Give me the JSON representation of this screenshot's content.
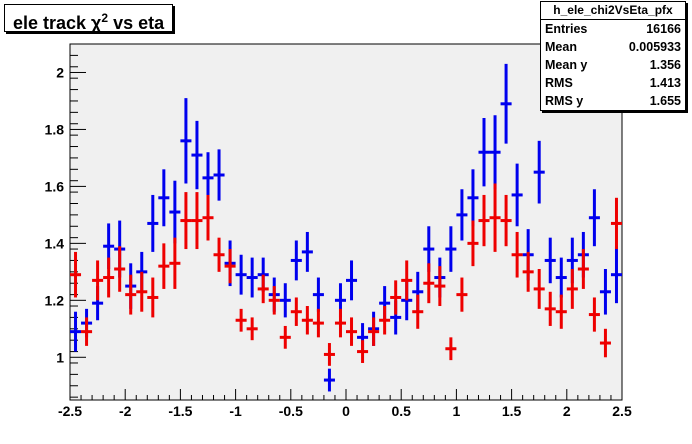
{
  "title_main": "ele track χ",
  "title_sup": "2",
  "title_rest": " vs eta",
  "stats": {
    "name": "h_ele_chi2VsEta_pfx",
    "rows": [
      {
        "label": "Entries",
        "value": "16166"
      },
      {
        "label": "Mean",
        "value": "0.005933"
      },
      {
        "label": "Mean y",
        "value": "1.356"
      },
      {
        "label": "RMS",
        "value": "1.413"
      },
      {
        "label": "RMS y",
        "value": "1.655"
      }
    ]
  },
  "colors": {
    "frame_bg": "#f0f0f0",
    "series_blue": "#0000ee",
    "series_red": "#ee0000"
  },
  "chart_data": {
    "type": "scatter",
    "title": "ele track χ² vs eta",
    "xlabel": "",
    "ylabel": "",
    "xlim": [
      -2.5,
      2.5
    ],
    "ylim": [
      0.85,
      2.1
    ],
    "xticks": [
      "-2.5",
      "-2",
      "-1.5",
      "-1",
      "-0.5",
      "0",
      "0.5",
      "1",
      "1.5",
      "2",
      "2.5"
    ],
    "yticks": [
      "1",
      "1.2",
      "1.4",
      "1.6",
      "1.8",
      "2"
    ],
    "x_bin_halfwidth": 0.05,
    "grid": false,
    "series": [
      {
        "color": "blue",
        "points": [
          {
            "x": -2.45,
            "y": 1.09,
            "err": 0.07
          },
          {
            "x": -2.35,
            "y": 1.12,
            "err": 0.05
          },
          {
            "x": -2.25,
            "y": 1.19,
            "err": 0.06
          },
          {
            "x": -2.15,
            "y": 1.39,
            "err": 0.08
          },
          {
            "x": -2.05,
            "y": 1.38,
            "err": 0.1
          },
          {
            "x": -1.95,
            "y": 1.25,
            "err": 0.08
          },
          {
            "x": -1.85,
            "y": 1.3,
            "err": 0.07
          },
          {
            "x": -1.75,
            "y": 1.47,
            "err": 0.1
          },
          {
            "x": -1.65,
            "y": 1.56,
            "err": 0.1
          },
          {
            "x": -1.55,
            "y": 1.51,
            "err": 0.11
          },
          {
            "x": -1.45,
            "y": 1.76,
            "err": 0.15
          },
          {
            "x": -1.35,
            "y": 1.71,
            "err": 0.12
          },
          {
            "x": -1.25,
            "y": 1.63,
            "err": 0.09
          },
          {
            "x": -1.15,
            "y": 1.64,
            "err": 0.09
          },
          {
            "x": -1.05,
            "y": 1.33,
            "err": 0.08
          },
          {
            "x": -0.95,
            "y": 1.29,
            "err": 0.07
          },
          {
            "x": -0.85,
            "y": 1.28,
            "err": 0.07
          },
          {
            "x": -0.75,
            "y": 1.29,
            "err": 0.06
          },
          {
            "x": -0.65,
            "y": 1.22,
            "err": 0.06
          },
          {
            "x": -0.55,
            "y": 1.2,
            "err": 0.06
          },
          {
            "x": -0.45,
            "y": 1.34,
            "err": 0.07
          },
          {
            "x": -0.35,
            "y": 1.37,
            "err": 0.07
          },
          {
            "x": -0.25,
            "y": 1.22,
            "err": 0.06
          },
          {
            "x": -0.15,
            "y": 0.92,
            "err": 0.04
          },
          {
            "x": -0.05,
            "y": 1.2,
            "err": 0.06
          },
          {
            "x": 0.05,
            "y": 1.27,
            "err": 0.07
          },
          {
            "x": 0.15,
            "y": 1.07,
            "err": 0.05
          },
          {
            "x": 0.25,
            "y": 1.1,
            "err": 0.06
          },
          {
            "x": 0.35,
            "y": 1.19,
            "err": 0.06
          },
          {
            "x": 0.45,
            "y": 1.14,
            "err": 0.06
          },
          {
            "x": 0.55,
            "y": 1.2,
            "err": 0.07
          },
          {
            "x": 0.65,
            "y": 1.23,
            "err": 0.07
          },
          {
            "x": 0.75,
            "y": 1.38,
            "err": 0.08
          },
          {
            "x": 0.85,
            "y": 1.28,
            "err": 0.07
          },
          {
            "x": 0.95,
            "y": 1.38,
            "err": 0.08
          },
          {
            "x": 1.05,
            "y": 1.5,
            "err": 0.09
          },
          {
            "x": 1.15,
            "y": 1.56,
            "err": 0.1
          },
          {
            "x": 1.25,
            "y": 1.72,
            "err": 0.12
          },
          {
            "x": 1.35,
            "y": 1.72,
            "err": 0.13
          },
          {
            "x": 1.45,
            "y": 1.89,
            "err": 0.14
          },
          {
            "x": 1.55,
            "y": 1.57,
            "err": 0.11
          },
          {
            "x": 1.65,
            "y": 1.36,
            "err": 0.09
          },
          {
            "x": 1.75,
            "y": 1.65,
            "err": 0.11
          },
          {
            "x": 1.85,
            "y": 1.34,
            "err": 0.08
          },
          {
            "x": 1.95,
            "y": 1.28,
            "err": 0.07
          },
          {
            "x": 2.05,
            "y": 1.34,
            "err": 0.08
          },
          {
            "x": 2.15,
            "y": 1.36,
            "err": 0.08
          },
          {
            "x": 2.25,
            "y": 1.49,
            "err": 0.1
          },
          {
            "x": 2.35,
            "y": 1.23,
            "err": 0.08
          },
          {
            "x": 2.45,
            "y": 1.29,
            "err": 0.1
          }
        ]
      },
      {
        "color": "red",
        "points": [
          {
            "x": -2.45,
            "y": 1.29,
            "err": 0.08
          },
          {
            "x": -2.35,
            "y": 1.09,
            "err": 0.05
          },
          {
            "x": -2.25,
            "y": 1.27,
            "err": 0.07
          },
          {
            "x": -2.15,
            "y": 1.28,
            "err": 0.07
          },
          {
            "x": -2.05,
            "y": 1.31,
            "err": 0.08
          },
          {
            "x": -1.95,
            "y": 1.22,
            "err": 0.07
          },
          {
            "x": -1.85,
            "y": 1.23,
            "err": 0.07
          },
          {
            "x": -1.75,
            "y": 1.21,
            "err": 0.07
          },
          {
            "x": -1.65,
            "y": 1.32,
            "err": 0.08
          },
          {
            "x": -1.55,
            "y": 1.33,
            "err": 0.09
          },
          {
            "x": -1.45,
            "y": 1.48,
            "err": 0.1
          },
          {
            "x": -1.35,
            "y": 1.48,
            "err": 0.1
          },
          {
            "x": -1.25,
            "y": 1.49,
            "err": 0.08
          },
          {
            "x": -1.15,
            "y": 1.36,
            "err": 0.06
          },
          {
            "x": -1.05,
            "y": 1.32,
            "err": 0.06
          },
          {
            "x": -0.95,
            "y": 1.13,
            "err": 0.04
          },
          {
            "x": -0.85,
            "y": 1.1,
            "err": 0.04
          },
          {
            "x": -0.75,
            "y": 1.24,
            "err": 0.05
          },
          {
            "x": -0.65,
            "y": 1.2,
            "err": 0.05
          },
          {
            "x": -0.55,
            "y": 1.07,
            "err": 0.04
          },
          {
            "x": -0.45,
            "y": 1.16,
            "err": 0.05
          },
          {
            "x": -0.35,
            "y": 1.13,
            "err": 0.05
          },
          {
            "x": -0.25,
            "y": 1.12,
            "err": 0.05
          },
          {
            "x": -0.15,
            "y": 1.01,
            "err": 0.04
          },
          {
            "x": -0.05,
            "y": 1.12,
            "err": 0.05
          },
          {
            "x": 0.05,
            "y": 1.09,
            "err": 0.05
          },
          {
            "x": 0.15,
            "y": 1.02,
            "err": 0.04
          },
          {
            "x": 0.25,
            "y": 1.09,
            "err": 0.05
          },
          {
            "x": 0.35,
            "y": 1.13,
            "err": 0.05
          },
          {
            "x": 0.45,
            "y": 1.21,
            "err": 0.06
          },
          {
            "x": 0.55,
            "y": 1.27,
            "err": 0.07
          },
          {
            "x": 0.65,
            "y": 1.16,
            "err": 0.06
          },
          {
            "x": 0.75,
            "y": 1.26,
            "err": 0.07
          },
          {
            "x": 0.85,
            "y": 1.25,
            "err": 0.07
          },
          {
            "x": 0.95,
            "y": 1.03,
            "err": 0.04
          },
          {
            "x": 1.05,
            "y": 1.22,
            "err": 0.06
          },
          {
            "x": 1.15,
            "y": 1.4,
            "err": 0.08
          },
          {
            "x": 1.25,
            "y": 1.48,
            "err": 0.09
          },
          {
            "x": 1.35,
            "y": 1.49,
            "err": 0.12
          },
          {
            "x": 1.45,
            "y": 1.48,
            "err": 0.09
          },
          {
            "x": 1.55,
            "y": 1.36,
            "err": 0.08
          },
          {
            "x": 1.65,
            "y": 1.3,
            "err": 0.07
          },
          {
            "x": 1.75,
            "y": 1.24,
            "err": 0.07
          },
          {
            "x": 1.85,
            "y": 1.17,
            "err": 0.06
          },
          {
            "x": 1.95,
            "y": 1.16,
            "err": 0.06
          },
          {
            "x": 2.05,
            "y": 1.24,
            "err": 0.07
          },
          {
            "x": 2.15,
            "y": 1.31,
            "err": 0.07
          },
          {
            "x": 2.25,
            "y": 1.15,
            "err": 0.06
          },
          {
            "x": 2.35,
            "y": 1.05,
            "err": 0.05
          },
          {
            "x": 2.45,
            "y": 1.47,
            "err": 0.09
          }
        ]
      }
    ]
  }
}
